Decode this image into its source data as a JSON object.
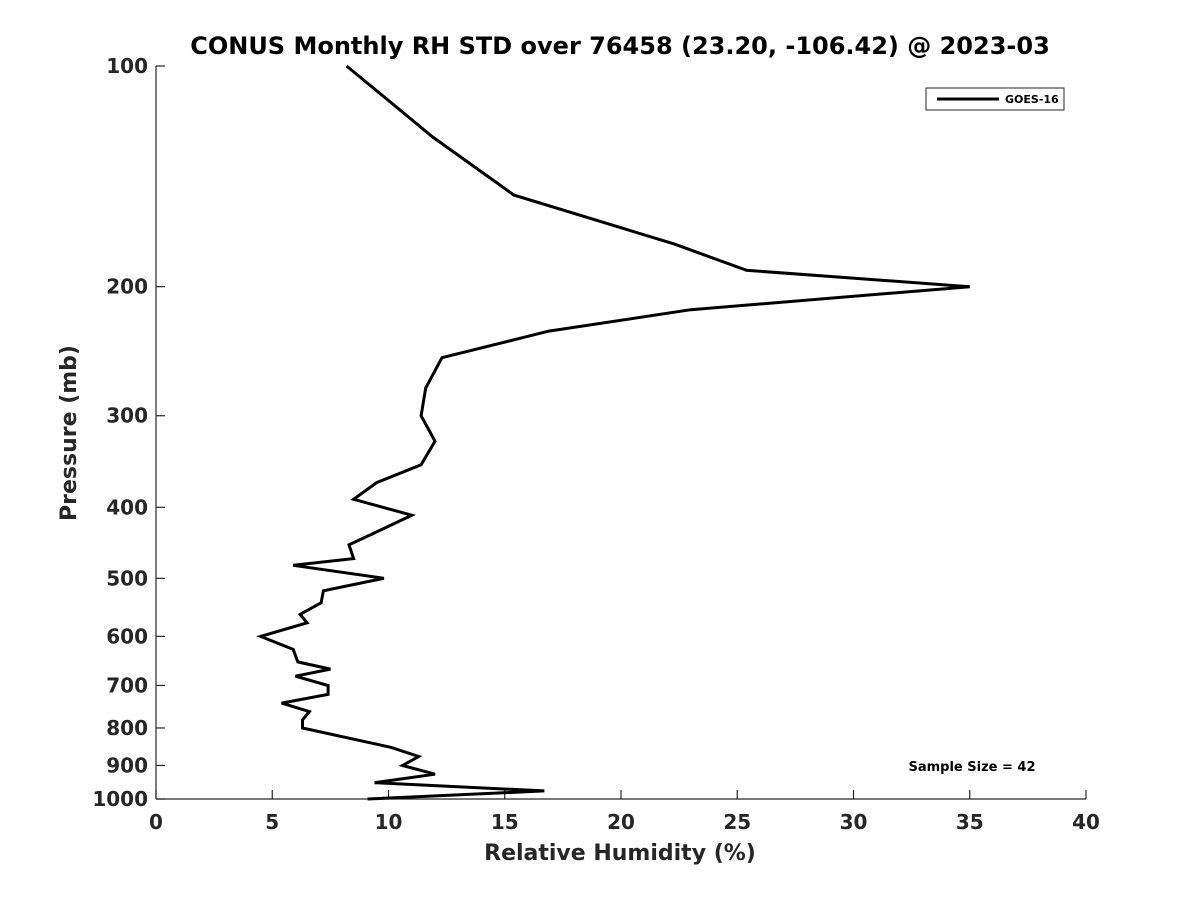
{
  "chart_data": {
    "type": "line",
    "title": "CONUS Monthly RH STD over 76458 (23.20, -106.42) @ 2023-03",
    "xlabel": "Relative Humidity (%)",
    "ylabel": "Pressure (mb)",
    "xlim": [
      0,
      40
    ],
    "ylim": [
      100,
      1000
    ],
    "yscale": "log",
    "y_reversed": true,
    "grid": false,
    "legend_position": "top-right",
    "x_ticks": [
      0,
      5,
      10,
      15,
      20,
      25,
      30,
      35,
      40
    ],
    "y_ticks": [
      100,
      200,
      300,
      400,
      500,
      600,
      700,
      800,
      900,
      1000
    ],
    "annotation": "Sample Size = 42",
    "series": [
      {
        "name": "GOES-16",
        "color": "#000000",
        "points": [
          [
            8.2,
            100
          ],
          [
            11.9,
            125
          ],
          [
            15.4,
            150
          ],
          [
            22.3,
            175
          ],
          [
            25.4,
            190
          ],
          [
            35.0,
            200
          ],
          [
            23.0,
            215
          ],
          [
            16.9,
            230
          ],
          [
            12.3,
            250
          ],
          [
            11.6,
            275
          ],
          [
            11.4,
            300
          ],
          [
            12.0,
            325
          ],
          [
            11.4,
            350
          ],
          [
            9.5,
            370
          ],
          [
            8.5,
            390
          ],
          [
            11.0,
            410
          ],
          [
            9.3,
            435
          ],
          [
            8.3,
            450
          ],
          [
            8.5,
            470
          ],
          [
            5.9,
            480
          ],
          [
            9.8,
            500
          ],
          [
            7.2,
            520
          ],
          [
            7.1,
            540
          ],
          [
            6.2,
            560
          ],
          [
            6.5,
            575
          ],
          [
            4.5,
            600
          ],
          [
            5.9,
            625
          ],
          [
            6.1,
            650
          ],
          [
            7.5,
            665
          ],
          [
            6.0,
            680
          ],
          [
            7.4,
            700
          ],
          [
            7.4,
            720
          ],
          [
            5.4,
            740
          ],
          [
            6.6,
            760
          ],
          [
            6.3,
            780
          ],
          [
            6.3,
            800
          ],
          [
            10.1,
            850
          ],
          [
            11.3,
            875
          ],
          [
            10.6,
            900
          ],
          [
            12.0,
            925
          ],
          [
            9.4,
            950
          ],
          [
            16.7,
            975
          ],
          [
            9.1,
            1000
          ]
        ]
      }
    ]
  }
}
